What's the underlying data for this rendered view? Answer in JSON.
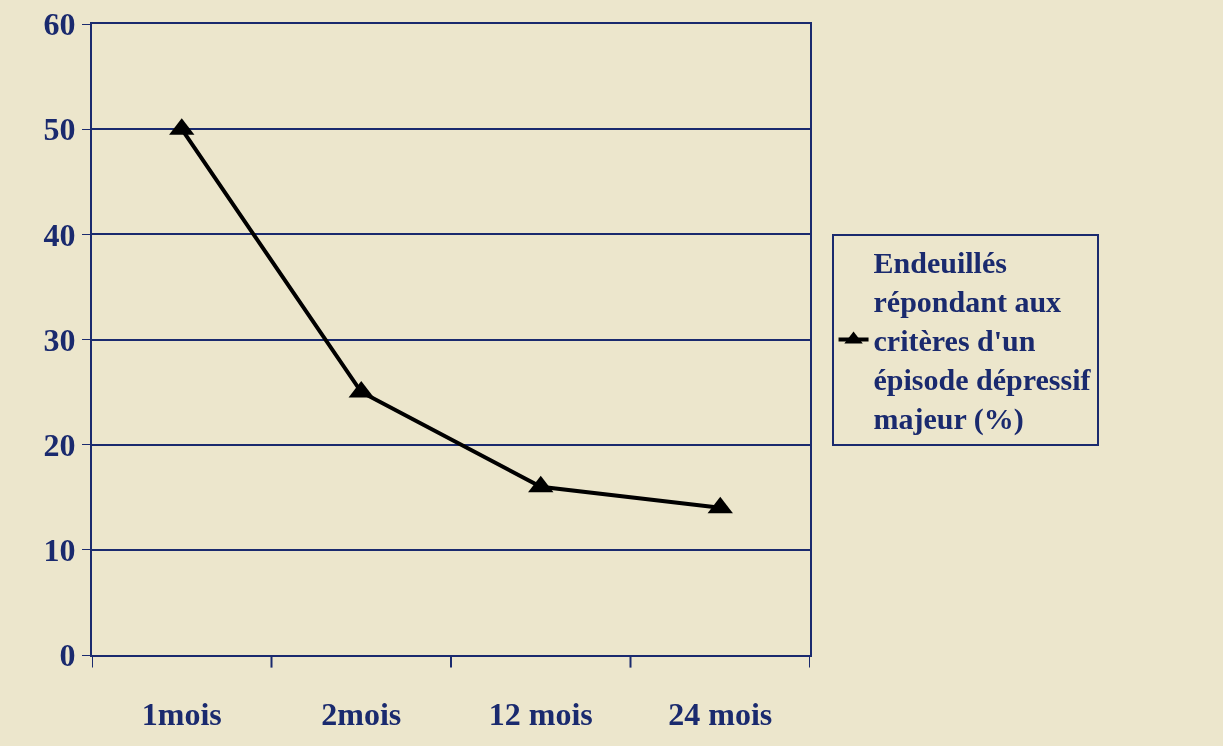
{
  "chart_data": {
    "type": "line",
    "categories": [
      "1mois",
      "2mois",
      "12 mois",
      "24 mois"
    ],
    "series": [
      {
        "name": "Endeuillés répondant aux critères d'un épisode dépressif majeur (%)",
        "color": "#000000",
        "values": [
          50,
          25,
          16,
          14
        ]
      }
    ],
    "ylim": [
      0,
      60
    ],
    "yticks": [
      0,
      10,
      20,
      30,
      40,
      50,
      60
    ],
    "grid": "y",
    "legend": "right",
    "marker": "triangle",
    "line_style": "solid"
  }
}
